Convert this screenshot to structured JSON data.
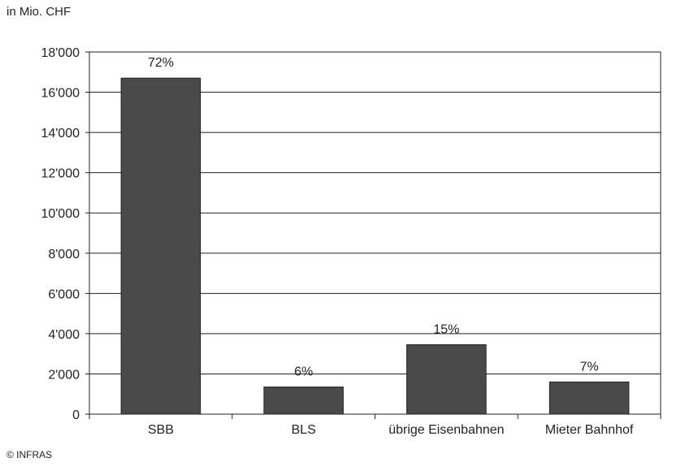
{
  "chart_data": {
    "type": "bar",
    "unit_label": "in Mio. CHF",
    "categories": [
      "SBB",
      "BLS",
      "übrige Eisenbahnen",
      "Mieter Bahnhof"
    ],
    "values": [
      16700,
      1350,
      3450,
      1600
    ],
    "data_labels": [
      "72%",
      "6%",
      "15%",
      "7%"
    ],
    "ylim": [
      0,
      18000
    ],
    "y_ticks": [
      0,
      2000,
      4000,
      6000,
      8000,
      10000,
      12000,
      14000,
      16000,
      18000
    ],
    "y_tick_labels": [
      "0",
      "2'000",
      "4'000",
      "6'000",
      "8'000",
      "10'000",
      "12'000",
      "14'000",
      "16'000",
      "18'000"
    ],
    "grid": true,
    "bar_color": "#4a4a4a",
    "credit": "© INFRAS"
  }
}
